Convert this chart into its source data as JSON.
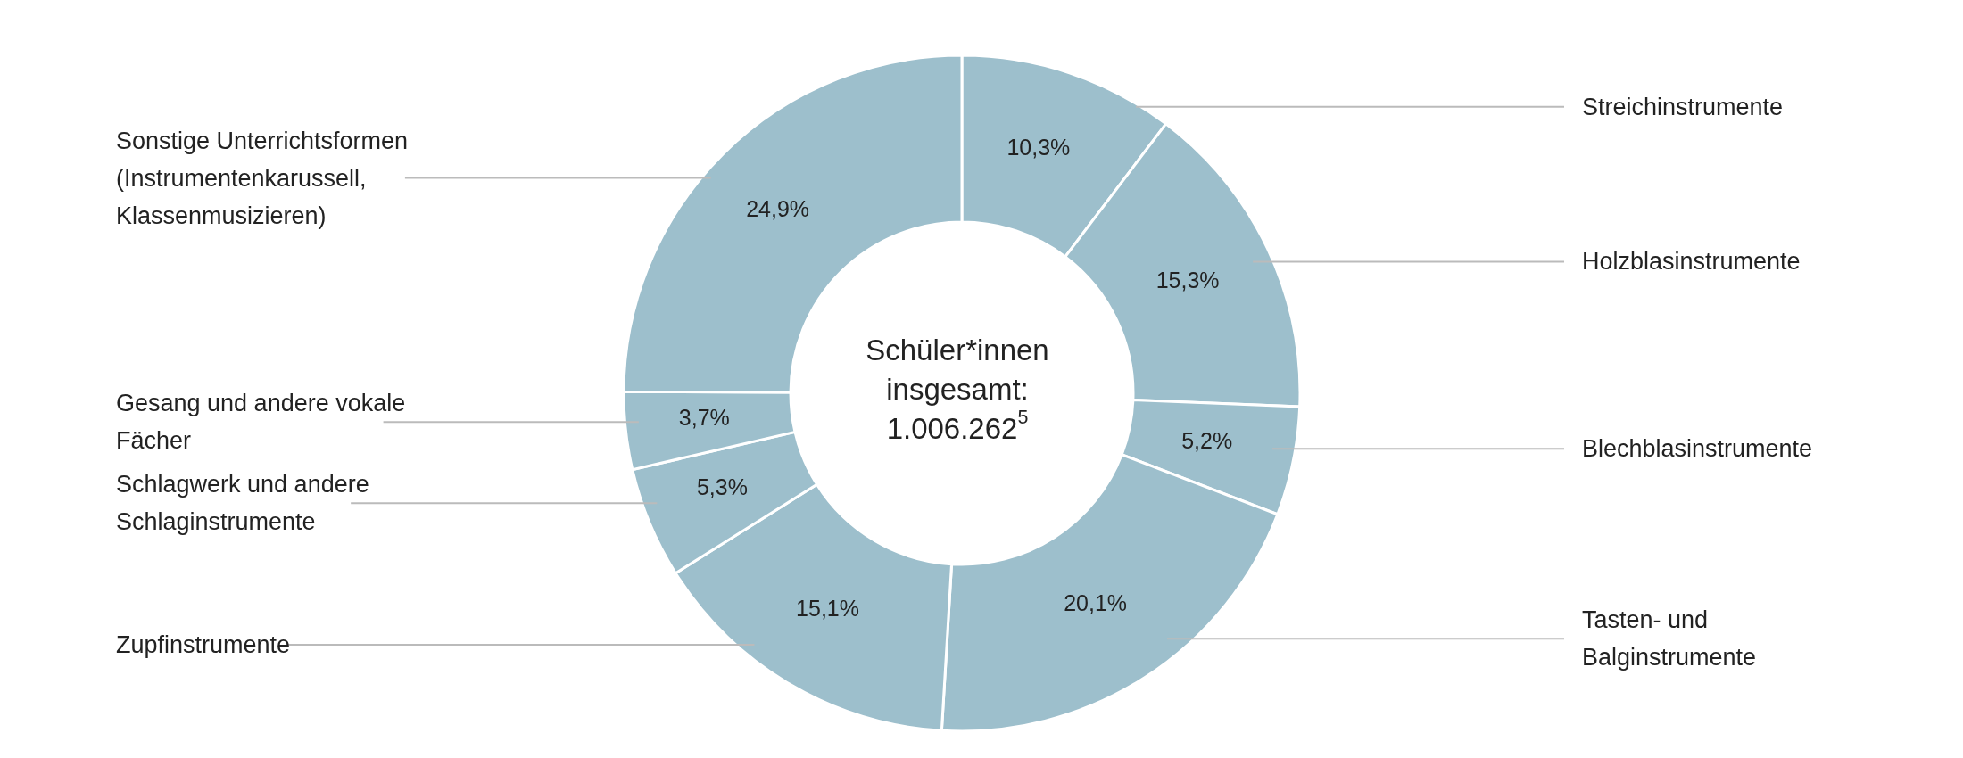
{
  "chart_data": {
    "type": "donut",
    "categories": [
      "Streichinstrumente",
      "Holzblasinstrumente",
      "Blechblasinstrumente",
      "Tasten- und Balginstrumente",
      "Zupfinstrumente",
      "Schlagwerk und andere Schlaginstrumente",
      "Gesang und andere vokale Fächer",
      "Sonstige Unterrichtsformen (Instrumentenkarussell, Klassenmusizieren)"
    ],
    "values": [
      10.3,
      15.3,
      5.2,
      20.1,
      15.1,
      5.3,
      3.7,
      24.9
    ],
    "value_labels": [
      "10,3%",
      "15,3%",
      "5,2%",
      "20,1%",
      "15,1%",
      "5,3%",
      "3,7%",
      "24,9%"
    ],
    "colors": [
      "#9dbfcc",
      "#9dbfcc",
      "#9dbfcc",
      "#9dbfcc",
      "#9dbfcc",
      "#9dbfcc",
      "#9dbfcc",
      "#9dbfcc"
    ],
    "annotations": [
      "Schüler*innen insgesamt: 1.006.262$^{5}$"
    ],
    "legend": false
  }
}
